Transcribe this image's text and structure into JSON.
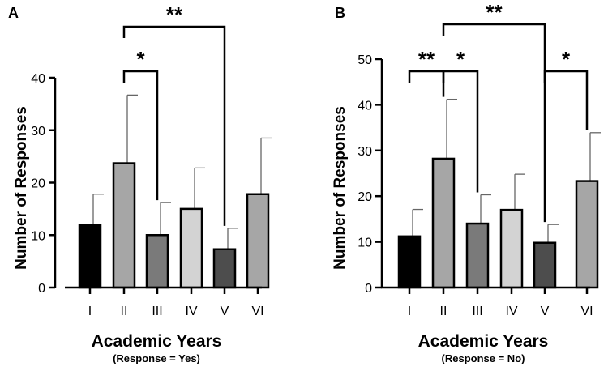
{
  "chart_data": [
    {
      "type": "bar",
      "panel": "A",
      "categories": [
        "I",
        "II",
        "III",
        "IV",
        "V",
        "VI"
      ],
      "values": [
        12,
        23.7,
        10,
        15,
        7.3,
        17.8
      ],
      "errors": [
        5.8,
        13,
        6.2,
        7.8,
        4,
        10.7
      ],
      "colors": [
        "#000000",
        "#a6a6a6",
        "#7a7a7a",
        "#d3d3d3",
        "#4d4d4d",
        "#a6a6a6"
      ],
      "ylabel": "Number of Responses",
      "xlabel": "Academic Years",
      "subtitle": "(Response = Yes)",
      "ylim": [
        0,
        40
      ],
      "yticks": [
        0,
        10,
        20,
        30,
        40
      ],
      "ytick_labels": [
        "0",
        "10",
        "20",
        "30",
        "40"
      ],
      "significance": [
        {
          "from": 1,
          "to": 2,
          "label": "*"
        },
        {
          "from": 1,
          "to": 4,
          "label": "**"
        }
      ]
    },
    {
      "type": "bar",
      "panel": "B",
      "categories": [
        "I",
        "II",
        "III",
        "IV",
        "V",
        "VI"
      ],
      "values": [
        11.2,
        28.2,
        14,
        17,
        9.8,
        23.3
      ],
      "errors": [
        5.9,
        13,
        6.3,
        7.8,
        4,
        10.6
      ],
      "colors": [
        "#000000",
        "#a6a6a6",
        "#7a7a7a",
        "#d3d3d3",
        "#4d4d4d",
        "#a6a6a6"
      ],
      "ylabel": "Number of Responses",
      "xlabel": "Academic Years",
      "subtitle": "(Response = No)",
      "ylim": [
        0,
        50
      ],
      "yticks": [
        0,
        10,
        20,
        30,
        40,
        50
      ],
      "ytick_labels": [
        "0",
        "10",
        "20",
        "30",
        "40",
        "50"
      ],
      "significance": [
        {
          "from": 0,
          "to": 1,
          "label": "**"
        },
        {
          "from": 1,
          "to": 2,
          "label": "*"
        },
        {
          "from": 4,
          "to": 5,
          "label": "*"
        },
        {
          "from": 1,
          "to": 4,
          "label": "**"
        }
      ]
    }
  ]
}
